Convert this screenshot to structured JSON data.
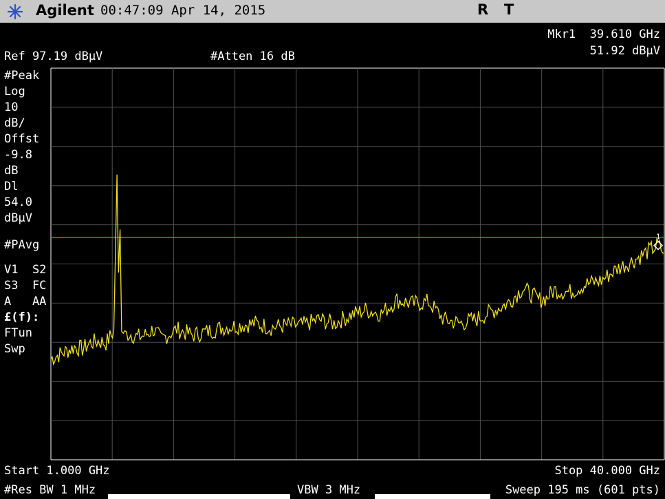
{
  "header": {
    "brand": "Agilent",
    "timestamp": "00:47:09  Apr 14, 2015",
    "flag_r": "R",
    "flag_t": "T"
  },
  "marker": {
    "label": "Mkr1",
    "frequency": "39.610 GHz",
    "amplitude": "51.92 dBµV",
    "number": "1"
  },
  "settings": {
    "ref_level": "Ref 97.19 dBµV",
    "attenuation": "#Atten 16 dB"
  },
  "sidebar": {
    "detector": "#Peak",
    "scale_type": "Log",
    "scale_value": "10",
    "scale_unit": "dB/",
    "offset_label": "Offst",
    "offset_value": "-9.8",
    "offset_unit": "dB",
    "display_line_label": "Dl",
    "display_line_value": "54.0",
    "display_line_unit": "dBµV",
    "average_mode": "#PAvg",
    "row_v1s2": "V1  S2",
    "row_s3fc": "S3  FC",
    "row_aaa": "A   AA",
    "row_ff": "£(f):",
    "row_ftun": "FTun",
    "row_swp": "Swp"
  },
  "footer": {
    "start": "Start 1.000 GHz",
    "stop": "Stop 40.000 GHz",
    "rbw": "#Res BW 1 MHz",
    "vbw": "VBW 3 MHz",
    "sweep": "Sweep 195 ms (601 pts)"
  },
  "colors": {
    "trace": "#f0e020",
    "display_line": "#00c800",
    "graticule": "#505050",
    "background": "#000000",
    "header_bg": "#c8c8c8"
  },
  "chart_data": {
    "type": "line",
    "xlabel": "",
    "ylabel": "",
    "x_unit": "GHz",
    "y_unit": "dBµV",
    "xlim": [
      1.0,
      40.0
    ],
    "ylim": [
      -2.81,
      97.19
    ],
    "display_line": 54.0,
    "marker": {
      "x": 39.61,
      "y": 51.92
    },
    "series": [
      {
        "name": "",
        "x": [
          1.0,
          1.5,
          2.0,
          2.5,
          3.0,
          3.5,
          4.0,
          4.5,
          5.0,
          5.2,
          5.3,
          5.4,
          5.5,
          5.7,
          6.0,
          6.5,
          7.0,
          7.5,
          8.0,
          9.0,
          10.0,
          11.0,
          12.0,
          13.0,
          14.0,
          15.0,
          16.0,
          17.0,
          18.0,
          19.0,
          20.0,
          21.0,
          22.0,
          23.0,
          24.0,
          25.0,
          26.0,
          26.5,
          27.0,
          28.0,
          29.0,
          30.0,
          31.0,
          32.0,
          32.5,
          33.0,
          34.0,
          35.0,
          36.0,
          37.0,
          38.0,
          39.0,
          39.61,
          40.0
        ],
        "y": [
          23.0,
          24.0,
          25.0,
          26.0,
          25.5,
          27.0,
          27.5,
          27.0,
          30.0,
          70.0,
          45.0,
          56.0,
          30.0,
          29.0,
          29.5,
          28.5,
          29.0,
          30.5,
          28.0,
          30.5,
          29.0,
          30.0,
          31.0,
          31.5,
          32.0,
          31.0,
          31.5,
          31.5,
          33.0,
          32.0,
          34.0,
          35.5,
          34.5,
          38.0,
          37.0,
          37.5,
          33.0,
          32.5,
          32.0,
          33.0,
          35.0,
          37.0,
          41.0,
          38.0,
          38.5,
          40.5,
          40.0,
          42.0,
          43.0,
          46.0,
          48.0,
          50.5,
          51.92,
          50.0
        ]
      }
    ]
  }
}
